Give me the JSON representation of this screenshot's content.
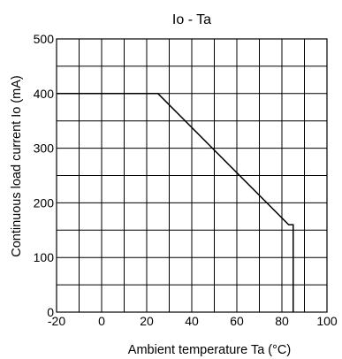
{
  "chart_data": {
    "type": "line",
    "title": "Io - Ta",
    "xlabel": "Ambient temperature Ta (°C)",
    "ylabel": "Continuous load current Io (mA)",
    "xlim": [
      -20,
      100
    ],
    "ylim": [
      0,
      500
    ],
    "x_ticks": [
      "-20",
      "0",
      "20",
      "40",
      "60",
      "80",
      "100"
    ],
    "y_ticks": [
      "0",
      "100",
      "200",
      "300",
      "400",
      "500"
    ],
    "grid": true,
    "series": [
      {
        "x": [
          -20,
          25,
          83,
          85,
          85
        ],
        "y": [
          400,
          400,
          160,
          160,
          0
        ]
      }
    ]
  }
}
